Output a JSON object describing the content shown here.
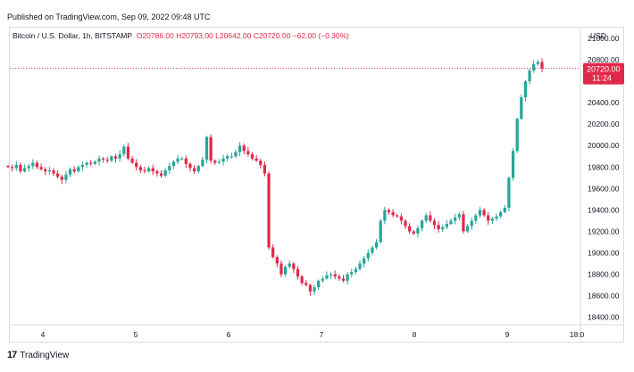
{
  "header": {
    "published": "Published on TradingView.com, Sep 09, 2022 09:48 UTC"
  },
  "legend": {
    "symbol": "Bitcoin / U.S. Dollar, 1h, BITSTAMP",
    "open": "O20786.00",
    "high": "H20793.00",
    "low": "L20642.00",
    "close": "C20720.00",
    "change": "−62.00 (−0.30%)"
  },
  "price_scale": {
    "currency": "USD",
    "last_price_label": "20720.00",
    "countdown_label": "11:24"
  },
  "footer": {
    "brand": "TradingView",
    "logo_mark": "17"
  },
  "colors": {
    "up": "#26a69a",
    "down": "#e0294a",
    "last_price_line": "#e0294a",
    "grid": "#d9dbe0"
  },
  "chart_data": {
    "type": "candlestick",
    "symbol": "Bitcoin / U.S. Dollar",
    "interval": "1h",
    "exchange": "BITSTAMP",
    "ylim": [
      18330,
      21100
    ],
    "y_ticks": [
      18400,
      18600,
      18800,
      19000,
      19200,
      19400,
      19600,
      19800,
      20000,
      20200,
      20400,
      20600,
      20800,
      21000
    ],
    "y_tick_labels": [
      "18400.00",
      "18600.00",
      "18800.00",
      "19000.00",
      "19200.00",
      "19400.00",
      "19600.00",
      "19800.00",
      "20000.00",
      "20200.00",
      "20400.00",
      "20600.00",
      "20800.00",
      "21000.00"
    ],
    "x_ticks": [
      {
        "label": "4",
        "hour": 0
      },
      {
        "label": "5",
        "hour": 24
      },
      {
        "label": "6",
        "hour": 48
      },
      {
        "label": "7",
        "hour": 72
      },
      {
        "label": "8",
        "hour": 96
      },
      {
        "label": "9",
        "hour": 120
      },
      {
        "label": "18:0",
        "hour": 138
      }
    ],
    "last_price": 20720,
    "series_close_hours_from_sep4": [
      -9,
      129
    ],
    "closes": [
      19800,
      19790,
      19820,
      19760,
      19790,
      19810,
      19840,
      19800,
      19780,
      19760,
      19770,
      19740,
      19710,
      19680,
      19730,
      19780,
      19760,
      19800,
      19820,
      19840,
      19830,
      19850,
      19880,
      19870,
      19860,
      19900,
      19880,
      19920,
      19990,
      19880,
      19840,
      19800,
      19770,
      19760,
      19790,
      19760,
      19740,
      19720,
      19770,
      19810,
      19850,
      19880,
      19880,
      19830,
      19790,
      19760,
      19810,
      19870,
      20080,
      19860,
      19840,
      19850,
      19880,
      19900,
      19900,
      19940,
      20000,
      19950,
      19920,
      19880,
      19860,
      19820,
      19740,
      19050,
      18960,
      18900,
      18800,
      18870,
      18900,
      18850,
      18780,
      18720,
      18700,
      18640,
      18680,
      18740,
      18760,
      18790,
      18800,
      18780,
      18760,
      18740,
      18800,
      18820,
      18850,
      18900,
      18950,
      19000,
      19050,
      19100,
      19300,
      19400,
      19380,
      19350,
      19340,
      19300,
      19250,
      19200,
      19180,
      19230,
      19300,
      19350,
      19300,
      19260,
      19220,
      19240,
      19270,
      19300,
      19330,
      19360,
      19200,
      19250,
      19300,
      19350,
      19400,
      19350,
      19300,
      19320,
      19340,
      19380,
      19420,
      19700,
      19950,
      20250,
      20450,
      20600,
      20700,
      20760,
      20780,
      20720
    ]
  }
}
